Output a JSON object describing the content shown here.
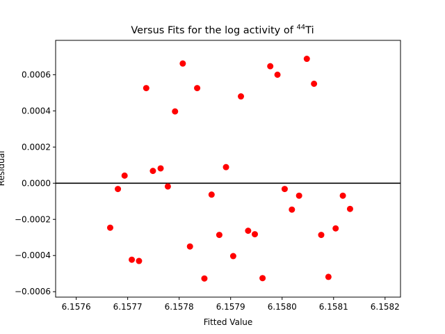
{
  "chart_data": {
    "type": "scatter",
    "title_main": "Versus Fits for the log activity of ",
    "title_sup": "44",
    "title_element": "Ti",
    "xlabel": "Fitted Value",
    "ylabel": "Residual",
    "xlim": [
      6.15756,
      6.15823
    ],
    "ylim": [
      -0.00063,
      0.00079
    ],
    "xticks": [
      {
        "value": 6.1576,
        "label": "6.1576"
      },
      {
        "value": 6.1577,
        "label": "6.1577"
      },
      {
        "value": 6.1578,
        "label": "6.1578"
      },
      {
        "value": 6.1579,
        "label": "6.1579"
      },
      {
        "value": 6.158,
        "label": "6.1580"
      },
      {
        "value": 6.1581,
        "label": "6.1581"
      },
      {
        "value": 6.1582,
        "label": "6.1582"
      }
    ],
    "yticks": [
      {
        "value": -0.0006,
        "label": "−0.0006"
      },
      {
        "value": -0.0004,
        "label": "−0.0004"
      },
      {
        "value": -0.0002,
        "label": "−0.0002"
      },
      {
        "value": 0.0,
        "label": "0.0000"
      },
      {
        "value": 0.0002,
        "label": "0.0002"
      },
      {
        "value": 0.0004,
        "label": "0.0004"
      },
      {
        "value": 0.0006,
        "label": "0.0006"
      }
    ],
    "reference_line": 0,
    "marker_color": "#ff0000",
    "points": [
      {
        "x": 6.157666,
        "y": -0.000246
      },
      {
        "x": 6.157681,
        "y": -3.2e-05
      },
      {
        "x": 6.157694,
        "y": 4.2e-05
      },
      {
        "x": 6.157708,
        "y": -0.000423
      },
      {
        "x": 6.157722,
        "y": -0.00043
      },
      {
        "x": 6.157736,
        "y": 0.000526
      },
      {
        "x": 6.157749,
        "y": 6.8e-05
      },
      {
        "x": 6.157764,
        "y": 8.2e-05
      },
      {
        "x": 6.157778,
        "y": -1.8e-05
      },
      {
        "x": 6.157792,
        "y": 0.000397
      },
      {
        "x": 6.157807,
        "y": 0.000662
      },
      {
        "x": 6.157821,
        "y": -0.00035
      },
      {
        "x": 6.157835,
        "y": 0.000526
      },
      {
        "x": 6.157849,
        "y": -0.000527
      },
      {
        "x": 6.157863,
        "y": -6.3e-05
      },
      {
        "x": 6.157878,
        "y": -0.000286
      },
      {
        "x": 6.157891,
        "y": 8.9e-05
      },
      {
        "x": 6.157905,
        "y": -0.000403
      },
      {
        "x": 6.15792,
        "y": 0.00048
      },
      {
        "x": 6.157934,
        "y": -0.000263
      },
      {
        "x": 6.157947,
        "y": -0.000282
      },
      {
        "x": 6.157962,
        "y": -0.000525
      },
      {
        "x": 6.157977,
        "y": 0.000647
      },
      {
        "x": 6.157991,
        "y": 0.0006
      },
      {
        "x": 6.158005,
        "y": -3.2e-05
      },
      {
        "x": 6.158019,
        "y": -0.000146
      },
      {
        "x": 6.158033,
        "y": -6.9e-05
      },
      {
        "x": 6.158048,
        "y": 0.000688
      },
      {
        "x": 6.158062,
        "y": 0.00055
      },
      {
        "x": 6.158076,
        "y": -0.000286
      },
      {
        "x": 6.15809,
        "y": -0.000518
      },
      {
        "x": 6.158104,
        "y": -0.00025
      },
      {
        "x": 6.158118,
        "y": -6.9e-05
      },
      {
        "x": 6.158132,
        "y": -0.000142
      }
    ]
  }
}
